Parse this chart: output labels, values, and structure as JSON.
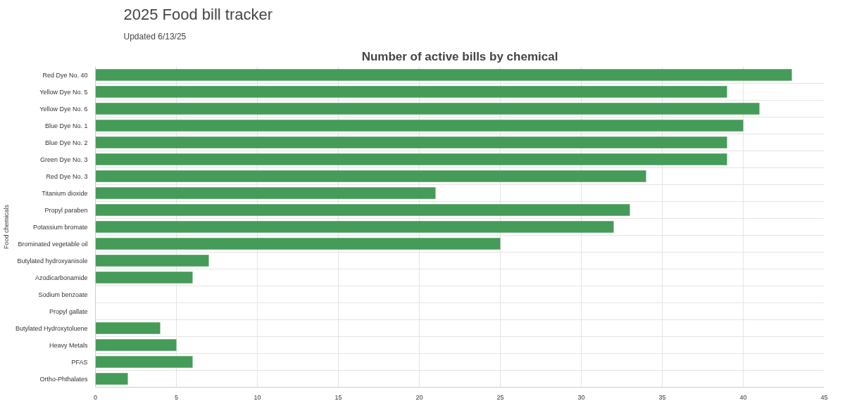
{
  "chart_data": {
    "type": "bar",
    "orientation": "horizontal",
    "title": "2025 Food bill tracker",
    "subtitle": "Updated 6/13/25",
    "annotations": [
      "Number of active bills by chemical"
    ],
    "ylabel": "Food chemicals",
    "categories": [
      "Red Dye No. 40",
      "Yellow Dye No. 5",
      "Yellow Dye No. 6",
      "Blue Dye No. 1",
      "Blue Dye No. 2",
      "Green Dye No. 3",
      "Red Dye No. 3",
      "Titanium dioxide",
      "Propyl paraben",
      "Potassium bromate",
      "Brominated vegetable oil",
      "Butylated hydroxyanisole",
      "Azodicarbonamide",
      "Sodium benzoate",
      "Propyl gallate",
      "Butylated Hydroxytoluene",
      "Heavy Metals",
      "PFAS",
      "Ortho-Phthalates"
    ],
    "values": [
      43,
      39,
      41,
      40,
      39,
      39,
      34,
      21,
      33,
      32,
      25,
      7,
      6,
      0,
      0,
      4,
      5,
      6,
      2
    ],
    "color": "#459b58",
    "xlim": [
      0,
      45
    ],
    "xticks": [
      0,
      5,
      10,
      15,
      20,
      25,
      30,
      35,
      40,
      45
    ],
    "grid": true
  }
}
